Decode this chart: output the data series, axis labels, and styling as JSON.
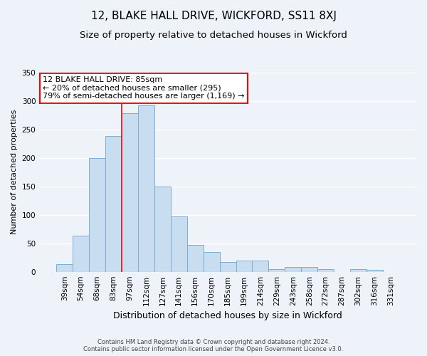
{
  "title": "12, BLAKE HALL DRIVE, WICKFORD, SS11 8XJ",
  "subtitle": "Size of property relative to detached houses in Wickford",
  "xlabel": "Distribution of detached houses by size in Wickford",
  "ylabel": "Number of detached properties",
  "bar_labels": [
    "39sqm",
    "54sqm",
    "68sqm",
    "83sqm",
    "97sqm",
    "112sqm",
    "127sqm",
    "141sqm",
    "156sqm",
    "170sqm",
    "185sqm",
    "199sqm",
    "214sqm",
    "229sqm",
    "243sqm",
    "258sqm",
    "272sqm",
    "287sqm",
    "302sqm",
    "316sqm",
    "331sqm"
  ],
  "bar_values": [
    13,
    63,
    200,
    238,
    278,
    292,
    150,
    97,
    47,
    35,
    17,
    19,
    19,
    5,
    8,
    8,
    4,
    0,
    5,
    3,
    0
  ],
  "bar_color": "#c9ddf0",
  "bar_edge_color": "#7aadd4",
  "vline_color": "red",
  "vline_x_index": 3.5,
  "ylim": [
    0,
    350
  ],
  "yticks": [
    0,
    50,
    100,
    150,
    200,
    250,
    300,
    350
  ],
  "annotation_title": "12 BLAKE HALL DRIVE: 85sqm",
  "annotation_line1": "← 20% of detached houses are smaller (295)",
  "annotation_line2": "79% of semi-detached houses are larger (1,169) →",
  "footer1": "Contains HM Land Registry data © Crown copyright and database right 2024.",
  "footer2": "Contains public sector information licensed under the Open Government Licence v3.0.",
  "background_color": "#eef2f9",
  "plot_background": "#eef2f9",
  "grid_color": "#ffffff",
  "title_fontsize": 11,
  "subtitle_fontsize": 9.5,
  "xlabel_fontsize": 9,
  "ylabel_fontsize": 8,
  "tick_fontsize": 7.5,
  "annotation_box_edge_color": "red",
  "annotation_box_face_color": "#ffffff",
  "annotation_fontsize": 8
}
